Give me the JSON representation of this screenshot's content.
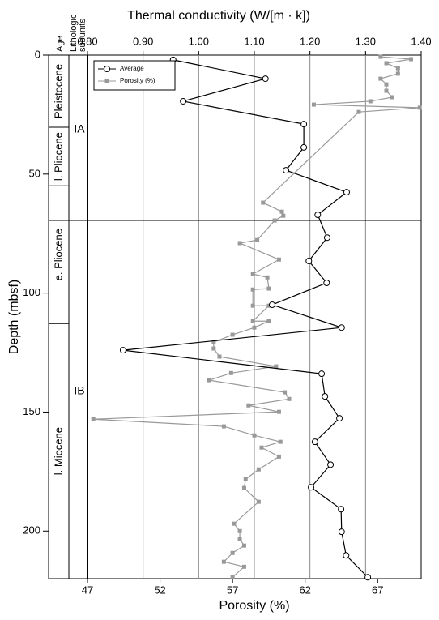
{
  "chart_data": {
    "type": "line",
    "xlabel": "Thermal conductivity (W/[m · k])",
    "x2label": "Porosity (%)",
    "ylabel": "Depth (mbsf)",
    "age_header": "Age",
    "subunit_header": [
      "Lithologic",
      "subunits"
    ],
    "xlim": [
      0.8,
      1.4
    ],
    "xticks": [
      {
        "value": 0.8,
        "label": "0.80"
      },
      {
        "value": 0.9,
        "label": "0.90"
      },
      {
        "value": 1.0,
        "label": "1.00"
      },
      {
        "value": 1.1,
        "label": "1.10"
      },
      {
        "value": 1.2,
        "label": "1.20"
      },
      {
        "value": 1.3,
        "label": "1.30"
      },
      {
        "value": 1.4,
        "label": "1.40"
      }
    ],
    "x2lim": [
      47,
      70
    ],
    "x2ticks": [
      47,
      52,
      57,
      62,
      67
    ],
    "ylim": [
      0,
      220
    ],
    "y_inverted": true,
    "yticks": [
      0,
      50,
      100,
      150,
      200
    ],
    "grid": true,
    "legend": "upper left",
    "ages": [
      {
        "label": "Pleistocene",
        "top": 0,
        "bottom": 30.3
      },
      {
        "label": "l. Pliocene",
        "top": 30.3,
        "bottom": 54.9
      },
      {
        "label": "e. Pliocene",
        "top": 54.9,
        "bottom": 112.8
      },
      {
        "label": "l. Miocene",
        "top": 112.8,
        "bottom": 220
      }
    ],
    "subunits": [
      {
        "label": "IA",
        "top": 0,
        "bottom": 69.5
      },
      {
        "label": "IB",
        "top": 69.5,
        "bottom": 220
      }
    ],
    "series": [
      {
        "name": "Average",
        "color": "#000000",
        "marker": "circle",
        "axis": "x",
        "y": [
          2.0,
          9.9,
          19.4,
          29.0,
          38.8,
          48.4,
          57.6,
          67.1,
          76.7,
          86.5,
          95.7,
          104.9,
          114.5,
          124.0,
          133.9,
          143.4,
          152.6,
          162.5,
          172.1,
          181.6,
          190.8,
          200.3,
          210.2,
          219.4
        ],
        "values": [
          0.954,
          1.12,
          0.972,
          1.189,
          1.189,
          1.157,
          1.266,
          1.214,
          1.231,
          1.198,
          1.23,
          1.132,
          1.257,
          0.864,
          1.221,
          1.227,
          1.253,
          1.209,
          1.237,
          1.202,
          1.256,
          1.257,
          1.265,
          1.304
        ]
      },
      {
        "name": "Porosity (%)",
        "color": "#999999",
        "marker": "square",
        "axis": "x2",
        "y": [
          0.7,
          1.7,
          3.4,
          5.5,
          7.8,
          9.9,
          12.3,
          15.0,
          17.7,
          19.4,
          20.8,
          22.1,
          23.9,
          62.0,
          65.8,
          67.5,
          69.5,
          77.7,
          79.0,
          85.9,
          92.0,
          93.4,
          98.1,
          98.5,
          105.3,
          105.3,
          111.8,
          111.8,
          114.5,
          117.5,
          120.6,
          123.3,
          126.7,
          130.8,
          133.6,
          136.6,
          141.7,
          144.5,
          147.2,
          149.9,
          153.0,
          156.0,
          159.8,
          162.5,
          164.9,
          168.7,
          174.1,
          178.2,
          181.9,
          187.7,
          196.9,
          200.0,
          203.4,
          206.1,
          209.2,
          212.9,
          215.0,
          219.4
        ],
        "values": [
          67.2,
          69.3,
          67.6,
          68.4,
          68.4,
          67.2,
          67.6,
          67.6,
          68.0,
          66.5,
          62.6,
          69.9,
          65.7,
          59.1,
          60.4,
          60.5,
          59.9,
          58.7,
          57.5,
          60.2,
          58.4,
          59.4,
          59.5,
          58.4,
          58.4,
          59.5,
          58.4,
          59.5,
          58.5,
          57.0,
          55.7,
          55.7,
          56.1,
          60.0,
          56.9,
          55.4,
          60.6,
          60.9,
          58.1,
          60.2,
          47.4,
          56.4,
          58.5,
          60.3,
          59.0,
          60.2,
          58.8,
          57.9,
          57.8,
          58.8,
          57.1,
          57.5,
          57.5,
          57.8,
          57.0,
          56.4,
          57.8,
          57.0
        ]
      }
    ]
  }
}
